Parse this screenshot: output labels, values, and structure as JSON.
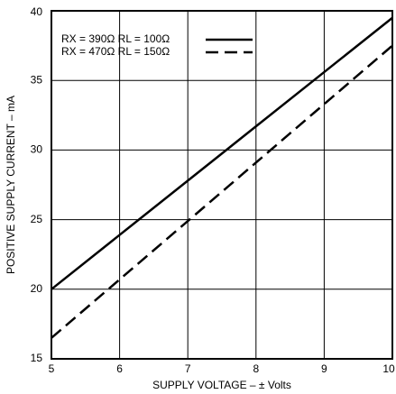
{
  "chart_data": {
    "type": "line",
    "x": [
      5,
      6,
      7,
      8,
      9,
      10
    ],
    "series": [
      {
        "name": "RX = 390Ω  RL = 100Ω",
        "color": "#000000",
        "dash": "solid",
        "values": [
          20,
          23.9,
          27.8,
          31.7,
          35.6,
          39.5
        ]
      },
      {
        "name": "RX = 470Ω  RL = 150Ω",
        "color": "#000000",
        "dash": "dashed",
        "values": [
          16.5,
          20.7,
          24.9,
          29.1,
          33.3,
          37.5
        ]
      }
    ],
    "xlabel": "SUPPLY VOLTAGE – ± Volts",
    "ylabel": "POSITIVE SUPPLY CURRENT – mA",
    "xlim": [
      5,
      10
    ],
    "xticks": [
      5,
      6,
      7,
      8,
      9,
      10
    ],
    "ylim": [
      15,
      40
    ],
    "yticks": [
      15,
      20,
      25,
      30,
      35,
      40
    ],
    "grid": true,
    "legend": "top-left"
  }
}
